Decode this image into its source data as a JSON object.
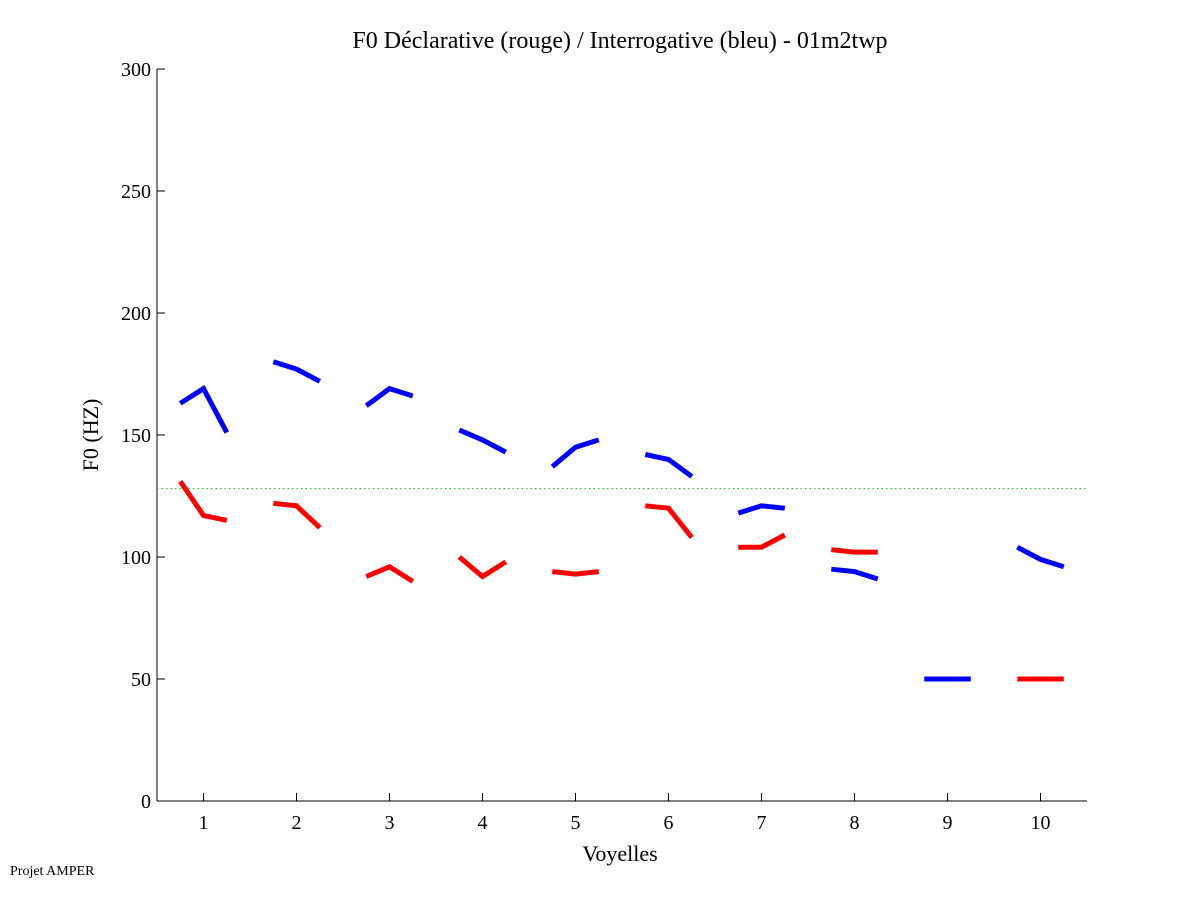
{
  "chart_data": {
    "type": "line",
    "title": "F0 Déclarative (rouge) / Interrogative (bleu) - 01m2twp",
    "xlabel": "Voyelles",
    "ylabel": "F0 (HZ)",
    "xlim": [
      0.5,
      10.5
    ],
    "ylim": [
      0,
      300
    ],
    "xticks": [
      "1",
      "2",
      "3",
      "4",
      "5",
      "6",
      "7",
      "8",
      "9",
      "10"
    ],
    "yticks": [
      "0",
      "50",
      "100",
      "150",
      "200",
      "250",
      "300"
    ],
    "grid": false,
    "reference_line": {
      "value": 128,
      "color": "#00cc00",
      "style": "dotted"
    },
    "series": [
      {
        "name": "Interrogative (bleu)",
        "color": "#0000ff",
        "segments": [
          [
            163,
            169,
            151
          ],
          [
            180,
            177,
            172
          ],
          [
            162,
            169,
            166
          ],
          [
            152,
            148,
            143
          ],
          [
            137,
            145,
            148
          ],
          [
            142,
            140,
            133
          ],
          [
            118,
            121,
            120
          ],
          [
            95,
            94,
            91
          ],
          [
            50,
            50,
            50
          ],
          [
            104,
            99,
            96
          ]
        ]
      },
      {
        "name": "Déclarative (rouge)",
        "color": "#ff0000",
        "segments": [
          [
            131,
            117,
            115
          ],
          [
            122,
            121,
            112
          ],
          [
            92,
            96,
            90
          ],
          [
            100,
            92,
            98
          ],
          [
            94,
            93,
            94
          ],
          [
            121,
            120,
            108
          ],
          [
            104,
            104,
            109
          ],
          [
            103,
            102,
            102
          ],
          null,
          [
            50,
            50,
            50
          ]
        ]
      }
    ]
  },
  "footer": "Projet AMPER"
}
